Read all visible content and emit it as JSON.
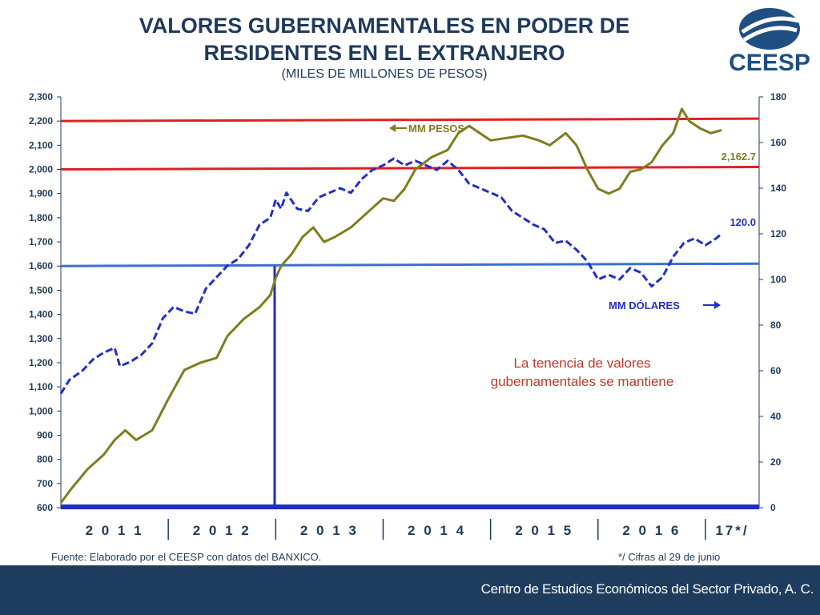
{
  "title_line1": "VALORES GUBERNAMENTALES EN PODER DE",
  "title_line2": "RESIDENTES EN EL EXTRANJERO",
  "subtitle": "(MILES DE MILLONES DE PESOS)",
  "logo_text": "CEESP",
  "source": "Fuente: Elaborado por el CEESP con datos del BANXICO.",
  "footnote": "*/ Cifras al 29 de junio",
  "footer_text": "Centro de Estudios Económicos del Sector Privado, A. C.",
  "colors": {
    "pesos_series": "#7d7d1e",
    "dolares_series": "#1f2fc8",
    "red_lines": "#e02020",
    "blue_line": "#3a6fd6",
    "footer": "#1d3c5e",
    "title": "#1f3a5c"
  },
  "chart_data": {
    "type": "line",
    "x_categories": [
      "2 0 1 1",
      "2 0 1 2",
      "2 0 1 3",
      "2 0 1 4",
      "2 0 1 5",
      "2 0 1 6",
      "17*/"
    ],
    "y_left": {
      "range": [
        600,
        2300
      ],
      "ticks": [
        "600",
        "700",
        "800",
        "900",
        "1,000",
        "1,100",
        "1,200",
        "1,300",
        "1,400",
        "1,500",
        "1,600",
        "1,700",
        "1,800",
        "1,900",
        "2,000",
        "2,100",
        "2,200",
        "2,300"
      ]
    },
    "y_right": {
      "range": [
        0,
        180
      ],
      "ticks": [
        "0",
        "20",
        "40",
        "60",
        "80",
        "100",
        "120",
        "140",
        "160",
        "180"
      ]
    },
    "series": [
      {
        "name": "MM PESOS",
        "axis": "left",
        "style": "solid",
        "end_label": "2,162.7",
        "points": [
          [
            2011.0,
            620
          ],
          [
            2011.1,
            680
          ],
          [
            2011.25,
            760
          ],
          [
            2011.4,
            820
          ],
          [
            2011.5,
            880
          ],
          [
            2011.6,
            920
          ],
          [
            2011.7,
            880
          ],
          [
            2011.85,
            920
          ],
          [
            2012.0,
            1050
          ],
          [
            2012.15,
            1170
          ],
          [
            2012.3,
            1200
          ],
          [
            2012.45,
            1220
          ],
          [
            2012.55,
            1310
          ],
          [
            2012.7,
            1380
          ],
          [
            2012.85,
            1430
          ],
          [
            2012.95,
            1480
          ],
          [
            2013.0,
            1550
          ],
          [
            2013.05,
            1600
          ],
          [
            2013.15,
            1650
          ],
          [
            2013.25,
            1720
          ],
          [
            2013.35,
            1760
          ],
          [
            2013.45,
            1700
          ],
          [
            2013.55,
            1720
          ],
          [
            2013.7,
            1760
          ],
          [
            2013.85,
            1820
          ],
          [
            2014.0,
            1880
          ],
          [
            2014.1,
            1870
          ],
          [
            2014.2,
            1920
          ],
          [
            2014.3,
            2000
          ],
          [
            2014.45,
            2050
          ],
          [
            2014.6,
            2080
          ],
          [
            2014.7,
            2150
          ],
          [
            2014.8,
            2180
          ],
          [
            2014.9,
            2150
          ],
          [
            2015.0,
            2120
          ],
          [
            2015.15,
            2130
          ],
          [
            2015.3,
            2140
          ],
          [
            2015.45,
            2120
          ],
          [
            2015.55,
            2100
          ],
          [
            2015.7,
            2150
          ],
          [
            2015.8,
            2100
          ],
          [
            2015.9,
            2000
          ],
          [
            2016.0,
            1920
          ],
          [
            2016.1,
            1900
          ],
          [
            2016.2,
            1920
          ],
          [
            2016.3,
            1990
          ],
          [
            2016.4,
            2000
          ],
          [
            2016.5,
            2030
          ],
          [
            2016.6,
            2100
          ],
          [
            2016.7,
            2150
          ],
          [
            2016.78,
            2250
          ],
          [
            2016.85,
            2200
          ],
          [
            2016.95,
            2170
          ],
          [
            2017.05,
            2150
          ],
          [
            2017.15,
            2162.7
          ]
        ]
      },
      {
        "name": "MM DÓLARES",
        "axis": "right",
        "style": "dashed",
        "end_label": "120.0",
        "points": [
          [
            2011.0,
            50
          ],
          [
            2011.08,
            56
          ],
          [
            2011.2,
            60
          ],
          [
            2011.3,
            65
          ],
          [
            2011.4,
            68
          ],
          [
            2011.5,
            70
          ],
          [
            2011.55,
            62
          ],
          [
            2011.65,
            64
          ],
          [
            2011.75,
            67
          ],
          [
            2011.85,
            72
          ],
          [
            2011.95,
            83
          ],
          [
            2012.05,
            88
          ],
          [
            2012.15,
            86
          ],
          [
            2012.25,
            85
          ],
          [
            2012.35,
            96
          ],
          [
            2012.45,
            101
          ],
          [
            2012.55,
            106
          ],
          [
            2012.65,
            109
          ],
          [
            2012.75,
            115
          ],
          [
            2012.85,
            124
          ],
          [
            2012.95,
            127
          ],
          [
            2013.0,
            135
          ],
          [
            2013.05,
            131
          ],
          [
            2013.1,
            138
          ],
          [
            2013.2,
            131
          ],
          [
            2013.3,
            130
          ],
          [
            2013.4,
            136
          ],
          [
            2013.5,
            138
          ],
          [
            2013.6,
            140
          ],
          [
            2013.7,
            138
          ],
          [
            2013.8,
            144
          ],
          [
            2013.9,
            148
          ],
          [
            2014.0,
            150
          ],
          [
            2014.1,
            153
          ],
          [
            2014.2,
            150
          ],
          [
            2014.3,
            152
          ],
          [
            2014.4,
            150
          ],
          [
            2014.5,
            148
          ],
          [
            2014.6,
            152
          ],
          [
            2014.7,
            148
          ],
          [
            2014.8,
            142
          ],
          [
            2014.9,
            140
          ],
          [
            2015.0,
            138
          ],
          [
            2015.1,
            136
          ],
          [
            2015.2,
            130
          ],
          [
            2015.3,
            127
          ],
          [
            2015.4,
            124
          ],
          [
            2015.5,
            122
          ],
          [
            2015.6,
            116
          ],
          [
            2015.7,
            117
          ],
          [
            2015.8,
            113
          ],
          [
            2015.9,
            108
          ],
          [
            2016.0,
            100
          ],
          [
            2016.1,
            102
          ],
          [
            2016.2,
            100
          ],
          [
            2016.3,
            105
          ],
          [
            2016.4,
            103
          ],
          [
            2016.5,
            97
          ],
          [
            2016.6,
            101
          ],
          [
            2016.7,
            110
          ],
          [
            2016.8,
            116
          ],
          [
            2016.9,
            118
          ],
          [
            2017.0,
            115
          ],
          [
            2017.1,
            118
          ],
          [
            2017.15,
            120
          ]
        ]
      }
    ],
    "reference_lines": [
      {
        "axis": "left",
        "value": 2200,
        "color": "red"
      },
      {
        "axis": "left",
        "value": 2000,
        "color": "red"
      },
      {
        "axis": "left",
        "value": 1600,
        "color": "blue"
      }
    ],
    "vertical_marker": {
      "x": 2012.99,
      "from": 600,
      "to": 1600
    },
    "annotations": {
      "pesos_label": "MM PESOS",
      "dolares_label": "MM DÓLARES",
      "note_line1": "La tenencia de valores",
      "note_line2": "gubernamentales se mantiene"
    },
    "grid": false
  }
}
